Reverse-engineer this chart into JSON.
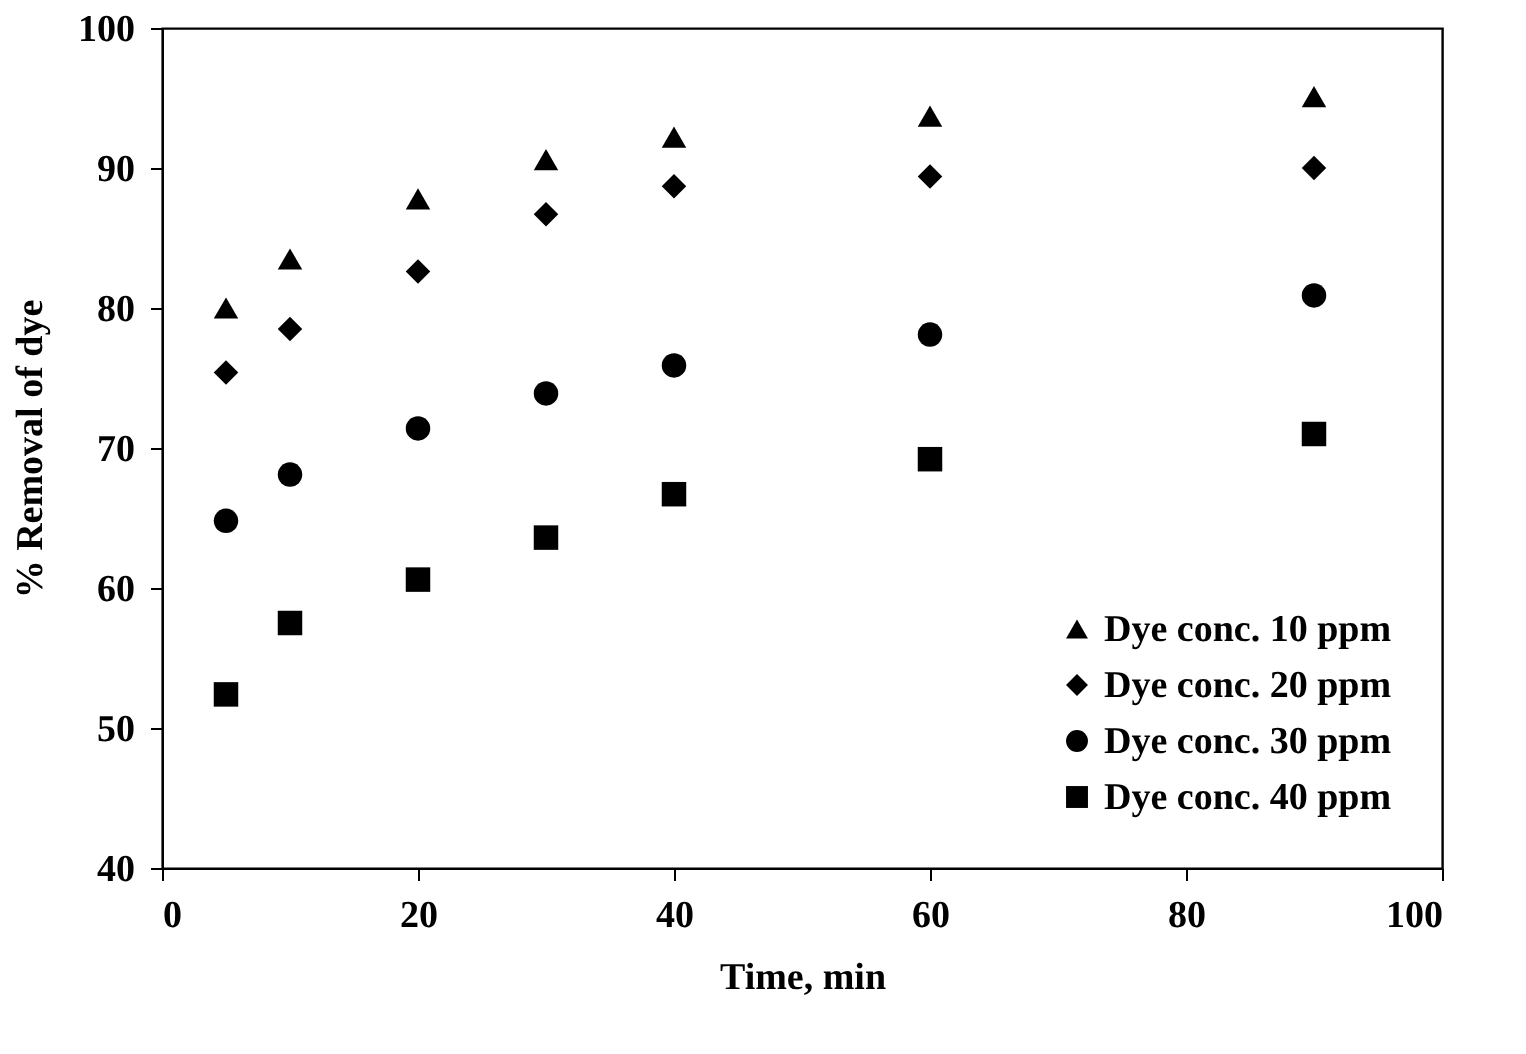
{
  "chart_data": {
    "type": "scatter",
    "xlabel": "Time, min",
    "ylabel": "% Removal of dye",
    "x": [
      5,
      10,
      20,
      30,
      40,
      60,
      90
    ],
    "series": [
      {
        "name": "Dye conc. 10 ppm",
        "color": "#000000",
        "marker": "triangle",
        "values": [
          80.0,
          83.5,
          87.8,
          90.6,
          92.2,
          93.7,
          95.1
        ]
      },
      {
        "name": "Dye conc. 20 ppm",
        "color": "#000000",
        "marker": "diamond",
        "values": [
          75.4,
          78.5,
          82.6,
          86.7,
          88.7,
          89.4,
          90.0
        ]
      },
      {
        "name": "Dye conc. 30 ppm",
        "color": "#000000",
        "marker": "circle",
        "values": [
          64.8,
          68.1,
          71.4,
          73.9,
          75.9,
          78.1,
          80.9
        ]
      },
      {
        "name": "Dye conc. 40 ppm",
        "color": "#000000",
        "marker": "square",
        "values": [
          52.4,
          57.5,
          60.6,
          63.6,
          66.7,
          69.2,
          71.0
        ]
      }
    ],
    "xlim": [
      0,
      100
    ],
    "xticks": [
      0,
      20,
      40,
      60,
      80,
      100
    ],
    "ylim": [
      40,
      100
    ],
    "yticks": [
      40,
      50,
      60,
      70,
      80,
      90,
      100
    ],
    "grid": false,
    "legend": "bottom right"
  }
}
